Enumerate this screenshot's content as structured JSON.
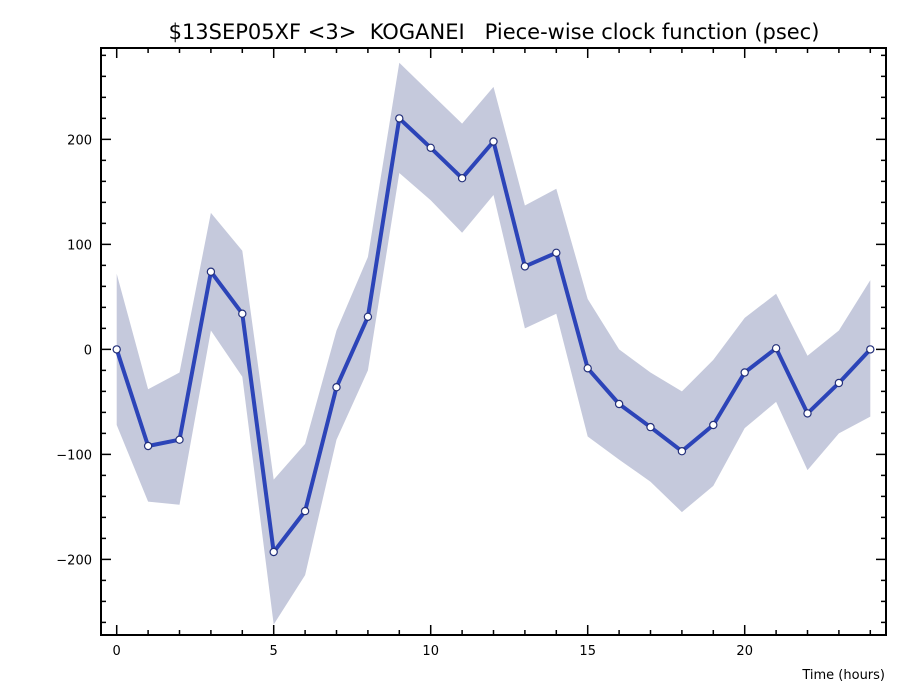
{
  "chart_data": {
    "type": "line",
    "title": "$13SEP05XF <3>  KOGANEI   Piece-wise clock function (psec)",
    "xlabel": "Time (hours)",
    "ylabel": "",
    "xlim": [
      -0.5,
      24.5
    ],
    "ylim": [
      -272,
      287
    ],
    "x_ticks": [
      0,
      5,
      10,
      15,
      20
    ],
    "y_ticks": [
      -200,
      -100,
      0,
      100,
      200
    ],
    "grid": false,
    "colors": {
      "line": "#2c44b8",
      "band": "#c5c9dc",
      "marker_fill": "#ffffff",
      "marker_edge": "#24307a"
    },
    "series": [
      {
        "x": [
          0,
          1,
          2,
          3,
          4,
          5,
          6,
          7,
          8,
          9,
          10,
          11,
          12,
          13,
          14,
          15,
          16,
          17,
          18,
          19,
          20,
          21,
          22,
          23,
          24
        ],
        "values": [
          0,
          -92,
          -86,
          74,
          34,
          -193,
          -154,
          -36,
          31,
          220,
          192,
          163,
          198,
          79,
          92,
          -18,
          -52,
          -74,
          -97,
          -72,
          -22,
          1,
          -61,
          -32,
          0
        ],
        "band_upper": [
          72,
          -38,
          -22,
          130,
          94,
          -124,
          -90,
          18,
          88,
          273,
          244,
          215,
          250,
          137,
          153,
          48,
          0,
          -22,
          -40,
          -10,
          30,
          53,
          -6,
          18,
          66
        ],
        "band_lower": [
          -72,
          -145,
          -148,
          18,
          -26,
          -262,
          -215,
          -86,
          -20,
          168,
          142,
          111,
          147,
          20,
          34,
          -83,
          -105,
          -126,
          -155,
          -130,
          -75,
          -50,
          -115,
          -80,
          -64
        ]
      }
    ]
  }
}
